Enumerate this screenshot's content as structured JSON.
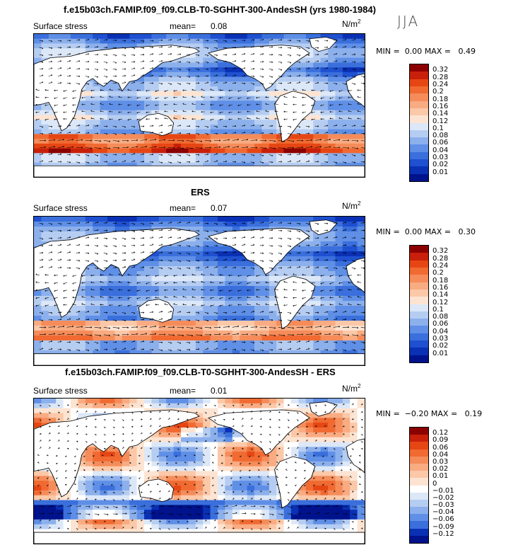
{
  "season": "JJA",
  "panels": [
    {
      "title": "f.e15b03ch.FAMIP.f09_f09.CLB-T0-SGHHT-300-AndesSH (yrs 1980-1984)",
      "variable": "Surface stress",
      "mean_label": "mean=",
      "mean_value": "0.08",
      "unit": "N/m",
      "unit_exp": "2",
      "min_label": "MIN =",
      "min_value": "0.00",
      "max_label": "MAX =",
      "max_value": "0.49",
      "levels": [
        "0.32",
        "0.28",
        "0.24",
        "0.2",
        "0.18",
        "0.16",
        "0.14",
        "0.12",
        "0.1",
        "0.08",
        "0.06",
        "0.04",
        "0.03",
        "0.02",
        "0.01"
      ],
      "colors": [
        "#8b0000",
        "#c8200a",
        "#e64614",
        "#f06a32",
        "#f58c5a",
        "#f9ab82",
        "#fbc8a8",
        "#fde4d2",
        "#dce8f8",
        "#b6cdf2",
        "#8cb0ec",
        "#5f8fe6",
        "#3a6fdc",
        "#1e50d0",
        "#0a30b4",
        "#00128c"
      ]
    },
    {
      "title": "ERS",
      "variable": "Surface stress",
      "mean_label": "mean=",
      "mean_value": "0.07",
      "unit": "N/m",
      "unit_exp": "2",
      "min_label": "MIN =",
      "min_value": "0.00",
      "max_label": "MAX =",
      "max_value": "0.30",
      "levels": [
        "0.32",
        "0.28",
        "0.24",
        "0.2",
        "0.18",
        "0.16",
        "0.14",
        "0.12",
        "0.1",
        "0.08",
        "0.06",
        "0.04",
        "0.03",
        "0.02",
        "0.01"
      ],
      "colors": [
        "#8b0000",
        "#c8200a",
        "#e64614",
        "#f06a32",
        "#f58c5a",
        "#f9ab82",
        "#fbc8a8",
        "#fde4d2",
        "#dce8f8",
        "#b6cdf2",
        "#8cb0ec",
        "#5f8fe6",
        "#3a6fdc",
        "#1e50d0",
        "#0a30b4",
        "#00128c"
      ]
    },
    {
      "title": "f.e15b03ch.FAMIP.f09_f09.CLB-T0-SGHHT-300-AndesSH - ERS",
      "variable": "Surface stress",
      "mean_label": "mean=",
      "mean_value": "0.01",
      "unit": "N/m",
      "unit_exp": "2",
      "min_label": "MIN =",
      "min_value": "−0.20",
      "max_label": "MAX =",
      "max_value": "0.19",
      "levels": [
        "0.12",
        "0.09",
        "0.06",
        "0.04",
        "0.03",
        "0.02",
        "0.01",
        "0",
        "−0.01",
        "−0.02",
        "−0.03",
        "−0.04",
        "−0.06",
        "−0.09",
        "−0.12"
      ],
      "colors": [
        "#8b0000",
        "#c8200a",
        "#e64614",
        "#f06a32",
        "#f58c5a",
        "#f9ab82",
        "#fbc8a8",
        "#fde4d2",
        "#ffffff",
        "#dce8f8",
        "#b6cdf2",
        "#8cb0ec",
        "#5f8fe6",
        "#3a6fdc",
        "#0a30b4",
        "#00128c"
      ]
    }
  ]
}
